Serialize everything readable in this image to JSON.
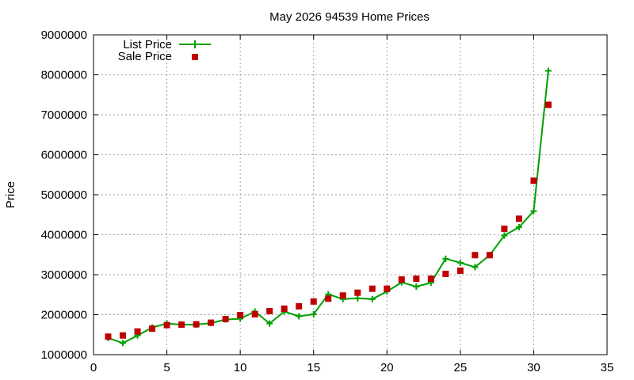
{
  "chart_data": {
    "type": "line",
    "title": "May 2026 94539 Home Prices",
    "xlabel": "",
    "ylabel": "Price",
    "xlim": [
      0,
      35
    ],
    "ylim": [
      1000000,
      9000000
    ],
    "x_ticks": [
      "0",
      "5",
      "10",
      "15",
      "20",
      "25",
      "30",
      "35"
    ],
    "y_ticks": [
      "1000000",
      "2000000",
      "3000000",
      "4000000",
      "5000000",
      "6000000",
      "7000000",
      "8000000",
      "9000000"
    ],
    "grid": true,
    "legend_position": "top-left",
    "series": [
      {
        "name": "List Price",
        "kind": "line-with-plus-markers",
        "color": "#00a000",
        "x": [
          1,
          2,
          3,
          4,
          5,
          6,
          7,
          8,
          9,
          10,
          11,
          12,
          13,
          14,
          15,
          16,
          17,
          18,
          19,
          20,
          21,
          22,
          23,
          24,
          25,
          26,
          27,
          28,
          29,
          30,
          31
        ],
        "values": [
          1420000,
          1290000,
          1480000,
          1680000,
          1780000,
          1750000,
          1750000,
          1790000,
          1880000,
          1900000,
          2080000,
          1780000,
          2080000,
          1960000,
          2010000,
          2510000,
          2390000,
          2410000,
          2390000,
          2580000,
          2810000,
          2700000,
          2800000,
          3400000,
          3300000,
          3190000,
          3490000,
          3980000,
          4190000,
          4590000,
          8100000
        ]
      },
      {
        "name": "Sale Price",
        "kind": "square-markers",
        "color": "#c00000",
        "x": [
          1,
          2,
          3,
          4,
          5,
          6,
          7,
          8,
          9,
          10,
          11,
          12,
          13,
          14,
          15,
          16,
          17,
          18,
          19,
          20,
          21,
          22,
          23,
          24,
          25,
          26,
          27,
          28,
          29,
          30,
          31
        ],
        "values": [
          1450000,
          1480000,
          1580000,
          1650000,
          1740000,
          1750000,
          1760000,
          1800000,
          1890000,
          1990000,
          2010000,
          2090000,
          2150000,
          2210000,
          2330000,
          2400000,
          2480000,
          2550000,
          2650000,
          2650000,
          2880000,
          2900000,
          2900000,
          3020000,
          3100000,
          3490000,
          3490000,
          4150000,
          4400000,
          5350000,
          7250000
        ]
      }
    ]
  }
}
